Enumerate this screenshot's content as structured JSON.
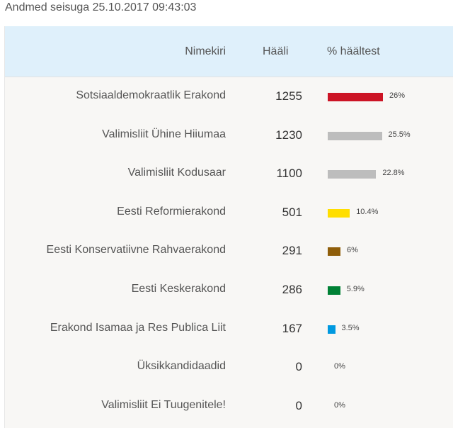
{
  "status": {
    "text": "Andmed seisuga 25.10.2017 09:43:03"
  },
  "table": {
    "headers": {
      "name": "Nimekiri",
      "votes": "Hääli",
      "percent": "% häältest"
    },
    "rows": [
      {
        "name": "Sotsiaaldemokraatlik Erakond",
        "votes": "1255",
        "percent_label": "26%",
        "percent": 26,
        "color": "#cc1425"
      },
      {
        "name": "Valimisliit Ühine Hiiumaa",
        "votes": "1230",
        "percent_label": "25.5%",
        "percent": 25.5,
        "color": "#bdbdbd"
      },
      {
        "name": "Valimisliit Kodusaar",
        "votes": "1100",
        "percent_label": "22.8%",
        "percent": 22.8,
        "color": "#bdbdbd"
      },
      {
        "name": "Eesti Reformierakond",
        "votes": "501",
        "percent_label": "10.4%",
        "percent": 10.4,
        "color": "#ffde00"
      },
      {
        "name": "Eesti Konservatiivne Rahvaerakond",
        "votes": "291",
        "percent_label": "6%",
        "percent": 6,
        "color": "#8f5e0a"
      },
      {
        "name": "Eesti Keskerakond",
        "votes": "286",
        "percent_label": "5.9%",
        "percent": 5.9,
        "color": "#008135"
      },
      {
        "name": "Erakond Isamaa ja Res Publica Liit",
        "votes": "167",
        "percent_label": "3.5%",
        "percent": 3.5,
        "color": "#0099e0"
      },
      {
        "name": "Üksikkandidaadid",
        "votes": "0",
        "percent_label": "0%",
        "percent": 0,
        "color": "#bdbdbd"
      },
      {
        "name": "Valimisliit Ei Tuugenitele!",
        "votes": "0",
        "percent_label": "0%",
        "percent": 0,
        "color": "#bdbdbd"
      }
    ]
  }
}
